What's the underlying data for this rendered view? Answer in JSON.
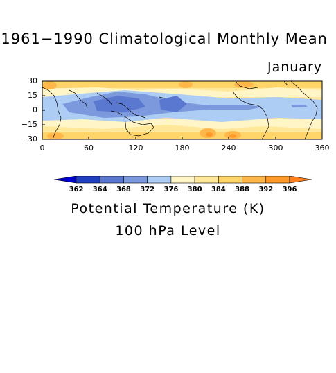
{
  "figure": {
    "title": "1961−1990 Climatological Monthly Mean",
    "month": "January",
    "variable_label": "Potential Temperature (K)",
    "level_label": "100 hPa Level"
  },
  "map": {
    "lon_range": [
      0,
      360
    ],
    "lat_range": [
      -30,
      30
    ],
    "y_ticks": [
      "30",
      "15",
      "0",
      "−15",
      "−30"
    ],
    "x_ticks": [
      "0",
      "60",
      "120",
      "180",
      "240",
      "300",
      "360"
    ]
  },
  "colorbar": {
    "levels": [
      "362",
      "364",
      "368",
      "372",
      "376",
      "380",
      "384",
      "388",
      "392",
      "396"
    ],
    "colors": [
      "#0000c8",
      "#2040c0",
      "#5a78cf",
      "#7c99dd",
      "#aecdf5",
      "#fff5c6",
      "#ffe89a",
      "#ffd468",
      "#ffb74a",
      "#ff9a2a",
      "#ff8020"
    ]
  }
}
